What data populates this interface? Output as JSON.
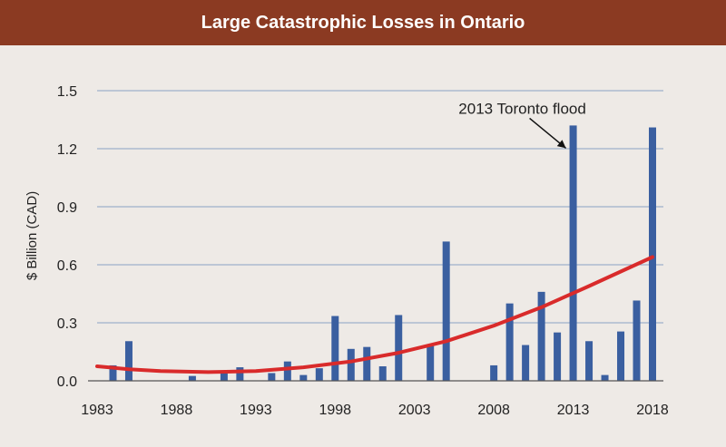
{
  "chart_data": {
    "type": "bar",
    "title": "Large Catastrophic Losses in Ontario",
    "ylabel": "$ Billion (CAD)",
    "xlabel": "",
    "ylim": [
      0,
      1.5
    ],
    "xlim": [
      1983,
      2018
    ],
    "y_ticks": [
      "0.0",
      "0.3",
      "0.6",
      "0.9",
      "1.2",
      "1.5"
    ],
    "x_ticks": [
      "1983",
      "1988",
      "1993",
      "1998",
      "2003",
      "2008",
      "2013",
      "2018"
    ],
    "grid": "horizontal",
    "colors": {
      "bar": "#3a5fa0",
      "trend": "#d92b2b",
      "header": "#8b3a22",
      "background": "#eeeae6",
      "grid": "#8aa3c4"
    },
    "bars": [
      {
        "year": 1984,
        "value": 0.08
      },
      {
        "year": 1985,
        "value": 0.205
      },
      {
        "year": 1989,
        "value": 0.025
      },
      {
        "year": 1991,
        "value": 0.04
      },
      {
        "year": 1992,
        "value": 0.07
      },
      {
        "year": 1994,
        "value": 0.04
      },
      {
        "year": 1995,
        "value": 0.1
      },
      {
        "year": 1996,
        "value": 0.03
      },
      {
        "year": 1997,
        "value": 0.065
      },
      {
        "year": 1998,
        "value": 0.335
      },
      {
        "year": 1999,
        "value": 0.165
      },
      {
        "year": 2000,
        "value": 0.175
      },
      {
        "year": 2001,
        "value": 0.075
      },
      {
        "year": 2002,
        "value": 0.34
      },
      {
        "year": 2004,
        "value": 0.18
      },
      {
        "year": 2005,
        "value": 0.72
      },
      {
        "year": 2008,
        "value": 0.08
      },
      {
        "year": 2009,
        "value": 0.4
      },
      {
        "year": 2010,
        "value": 0.185
      },
      {
        "year": 2011,
        "value": 0.46
      },
      {
        "year": 2012,
        "value": 0.25
      },
      {
        "year": 2013,
        "value": 1.32
      },
      {
        "year": 2014,
        "value": 0.205
      },
      {
        "year": 2015,
        "value": 0.03
      },
      {
        "year": 2016,
        "value": 0.255
      },
      {
        "year": 2017,
        "value": 0.415
      },
      {
        "year": 2018,
        "value": 1.31
      }
    ],
    "trend": [
      {
        "x": 1983,
        "y": 0.075
      },
      {
        "x": 1985,
        "y": 0.06
      },
      {
        "x": 1987,
        "y": 0.05
      },
      {
        "x": 1990,
        "y": 0.045
      },
      {
        "x": 1993,
        "y": 0.05
      },
      {
        "x": 1996,
        "y": 0.07
      },
      {
        "x": 1999,
        "y": 0.1
      },
      {
        "x": 2002,
        "y": 0.145
      },
      {
        "x": 2005,
        "y": 0.205
      },
      {
        "x": 2008,
        "y": 0.285
      },
      {
        "x": 2011,
        "y": 0.38
      },
      {
        "x": 2014,
        "y": 0.49
      },
      {
        "x": 2016,
        "y": 0.565
      },
      {
        "x": 2018,
        "y": 0.64
      }
    ],
    "annotation": {
      "text": "2013 Toronto flood",
      "year": 2013,
      "value": 1.32
    }
  }
}
